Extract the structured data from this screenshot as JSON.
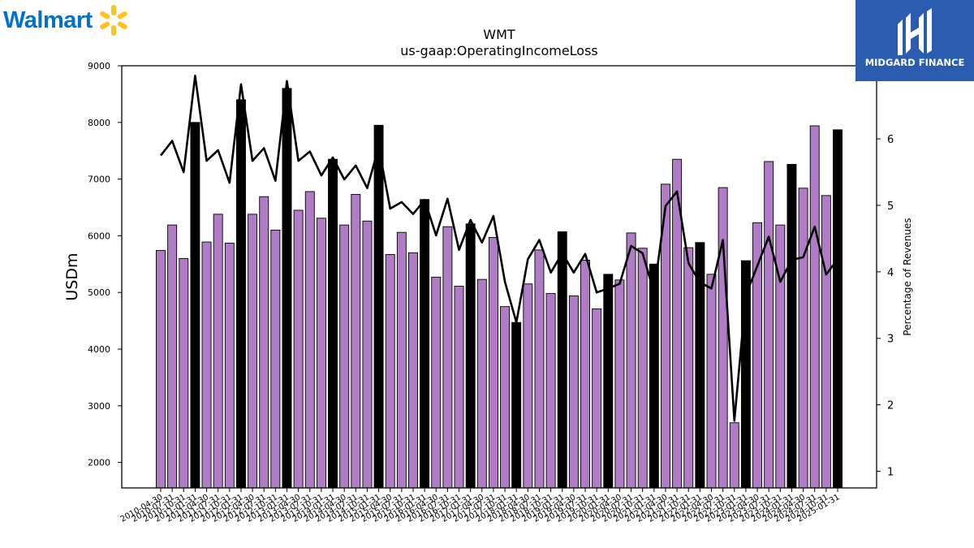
{
  "logos": {
    "walmart": "Walmart",
    "midgard": "MIDGARD FINANCE"
  },
  "colors": {
    "bar_quarter": "#b07cc6",
    "bar_annual": "#000000",
    "line": "#000000",
    "walmart_blue": "#0071ce",
    "walmart_spark": "#ffc220",
    "midgard_bg": "#2a5db0"
  },
  "chart_data": {
    "type": "bar",
    "title": "WMT",
    "subtitle": "us-gaap:OperatingIncomeLoss",
    "ylabel": "USDm",
    "y2label": "Percentage of Revenues",
    "ylim": [
      1550,
      9000
    ],
    "y2lim": [
      0.75,
      7.1
    ],
    "yticks": [
      2000,
      3000,
      4000,
      5000,
      6000,
      7000,
      8000,
      9000
    ],
    "y2ticks": [
      1,
      2,
      3,
      4,
      5,
      6
    ],
    "categories": [
      "2010-04-30",
      "2010-07-31",
      "2010-10-31",
      "2011-01-31",
      "2011-04-30",
      "2011-07-31",
      "2011-10-31",
      "2012-01-31",
      "2012-04-30",
      "2012-07-31",
      "2012-10-31",
      "2013-01-31",
      "2013-04-30",
      "2013-07-31",
      "2013-10-31",
      "2014-01-31",
      "2014-04-30",
      "2014-07-31",
      "2014-10-31",
      "2015-01-31",
      "2015-04-30",
      "2015-07-31",
      "2015-10-31",
      "2016-01-31",
      "2016-04-30",
      "2016-07-31",
      "2016-10-31",
      "2017-01-31",
      "2017-04-30",
      "2017-07-31",
      "2017-10-31",
      "2018-01-31",
      "2018-04-30",
      "2018-07-31",
      "2018-10-31",
      "2019-01-31",
      "2019-04-30",
      "2019-07-31",
      "2019-10-31",
      "2020-01-31",
      "2020-04-30",
      "2020-07-31",
      "2020-10-31",
      "2021-01-31",
      "2021-04-30",
      "2021-07-31",
      "2021-10-31",
      "2022-01-31",
      "2022-04-30",
      "2022-07-31",
      "2022-10-31",
      "2023-01-31",
      "2023-04-30",
      "2023-07-31",
      "2023-10-31",
      "2024-01-31",
      "2024-04-30",
      "2024-07-31",
      "2024-10-31",
      "2025-01-31"
    ],
    "annual": [
      false,
      false,
      false,
      true,
      false,
      false,
      false,
      true,
      false,
      false,
      false,
      true,
      false,
      false,
      false,
      true,
      false,
      false,
      false,
      true,
      false,
      false,
      false,
      true,
      false,
      false,
      false,
      true,
      false,
      false,
      false,
      true,
      false,
      false,
      false,
      true,
      false,
      false,
      false,
      true,
      false,
      false,
      false,
      true,
      false,
      false,
      false,
      true,
      false,
      false,
      false,
      true,
      false,
      false,
      false,
      true,
      false,
      false,
      false,
      true
    ],
    "series": [
      {
        "values": [
          5740,
          6190,
          5600,
          8000,
          5890,
          6380,
          5870,
          8400,
          6380,
          6690,
          6100,
          8600,
          6450,
          6780,
          6310,
          7350,
          6190,
          6730,
          6260,
          7950,
          5670,
          6060,
          5700,
          6640,
          5270,
          6160,
          5110,
          6210,
          5230,
          5970,
          4750,
          4470,
          5150,
          5750,
          4980,
          6070,
          4940,
          5570,
          4710,
          5320,
          5220,
          6050,
          5780,
          5500,
          6910,
          7350,
          5790,
          5880,
          5320,
          6850,
          2700,
          5560,
          6230,
          7310,
          6190,
          7260,
          6840,
          7940,
          6710,
          7870
        ]
      },
      {
        "axis": "right",
        "values": [
          5.75,
          5.97,
          5.5,
          6.95,
          5.67,
          5.83,
          5.34,
          6.82,
          5.67,
          5.86,
          5.37,
          6.87,
          5.67,
          5.81,
          5.45,
          5.72,
          5.39,
          5.6,
          5.26,
          5.88,
          4.95,
          5.05,
          4.87,
          5.08,
          4.55,
          5.1,
          4.33,
          4.78,
          4.44,
          4.84,
          3.85,
          3.24,
          4.19,
          4.48,
          3.99,
          4.28,
          3.99,
          4.27,
          3.69,
          3.75,
          3.82,
          4.39,
          4.28,
          3.69,
          4.99,
          5.21,
          4.13,
          3.84,
          3.75,
          4.48,
          1.76,
          3.65,
          4.09,
          4.53,
          3.85,
          4.18,
          4.22,
          4.68,
          3.96,
          4.19
        ]
      }
    ],
    "grid": false
  }
}
